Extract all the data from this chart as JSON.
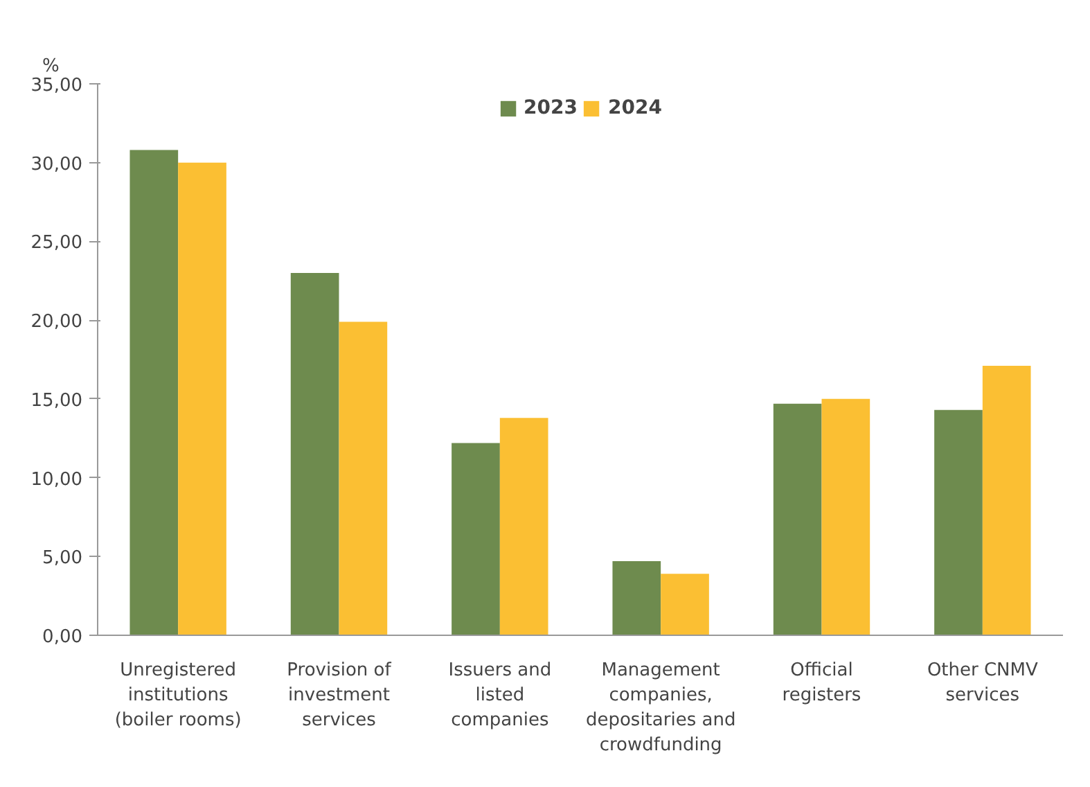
{
  "chart_data": {
    "type": "bar",
    "ylabel": "%",
    "categories": [
      "Unregistered\ninstitutions\n(boiler rooms)",
      "Provision of\ninvestment\nservices",
      "Issuers and\nlisted\ncompanies",
      "Management\ncompanies,\ndepositaries and\ncrowdfunding",
      "Official\nregisters",
      "Other CNMV\nservices"
    ],
    "series": [
      {
        "name": "2023",
        "color": "#6e8b4e",
        "values": [
          30.8,
          23.0,
          12.2,
          4.7,
          14.7,
          14.3
        ]
      },
      {
        "name": "2024",
        "color": "#fbbf33",
        "values": [
          30.0,
          19.9,
          13.8,
          3.9,
          15.0,
          17.1
        ]
      }
    ],
    "ylim": [
      0,
      35
    ],
    "yticks": [
      {
        "value": 0,
        "label": "0,00"
      },
      {
        "value": 5,
        "label": "5,00"
      },
      {
        "value": 10,
        "label": "10,00"
      },
      {
        "value": 15,
        "label": "15,00"
      },
      {
        "value": 20,
        "label": "20,00"
      },
      {
        "value": 25,
        "label": "25,00"
      },
      {
        "value": 30,
        "label": "30,00"
      },
      {
        "value": 35,
        "label": "35,00"
      }
    ],
    "grid": false,
    "legend": "top"
  }
}
